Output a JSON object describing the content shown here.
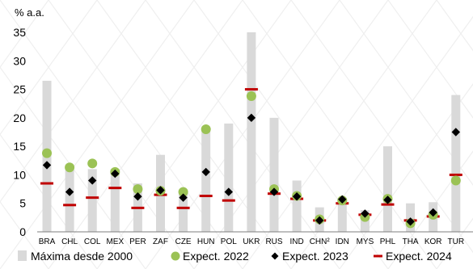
{
  "chart_data": {
    "type": "bar",
    "ylabel": "% a.a.",
    "ylim": [
      0,
      35
    ],
    "yticks": [
      0,
      5,
      10,
      15,
      20,
      25,
      30,
      35
    ],
    "categories": [
      "BRA",
      "CHL",
      "COL",
      "MEX",
      "PER",
      "ZAF",
      "CZE",
      "HUN",
      "POL",
      "UKR",
      "RUS",
      "IND",
      "CHN²",
      "IDN",
      "MYS",
      "PHL",
      "THA",
      "KOR",
      "TUR"
    ],
    "series": [
      {
        "name": "Máxima desde 2000",
        "kind": "bar",
        "color": "#d9d9d9",
        "values": [
          26.5,
          11,
          11,
          11,
          8.5,
          13.5,
          7.2,
          18.2,
          19,
          35,
          20,
          9,
          4.3,
          6,
          3.8,
          15,
          5,
          5.2,
          24
        ]
      },
      {
        "name": "Expect. 2022",
        "kind": "dot",
        "color": "#9bc255",
        "values": [
          13.8,
          11.3,
          12,
          10.5,
          7.5,
          7.2,
          7,
          18,
          null,
          23.8,
          7.5,
          6.3,
          2.2,
          5.5,
          2.6,
          5.8,
          1.5,
          3,
          9
        ]
      },
      {
        "name": "Expect. 2023",
        "kind": "diamond",
        "color": "#000000",
        "values": [
          11.7,
          7,
          9,
          10.2,
          6.2,
          7.3,
          6,
          10.5,
          7,
          20,
          7,
          6.2,
          2,
          5.7,
          3.2,
          5.6,
          1.8,
          3.4,
          17.5
        ]
      },
      {
        "name": "Expect. 2024",
        "kind": "dash",
        "color": "#c00000",
        "values": [
          8.5,
          4.7,
          6,
          7.7,
          4.2,
          6.5,
          4.2,
          6.3,
          5.5,
          25,
          6.7,
          5.8,
          2,
          5,
          3,
          4.8,
          2,
          2.7,
          10
        ]
      }
    ],
    "legend_position": "bottom",
    "grid": false
  }
}
